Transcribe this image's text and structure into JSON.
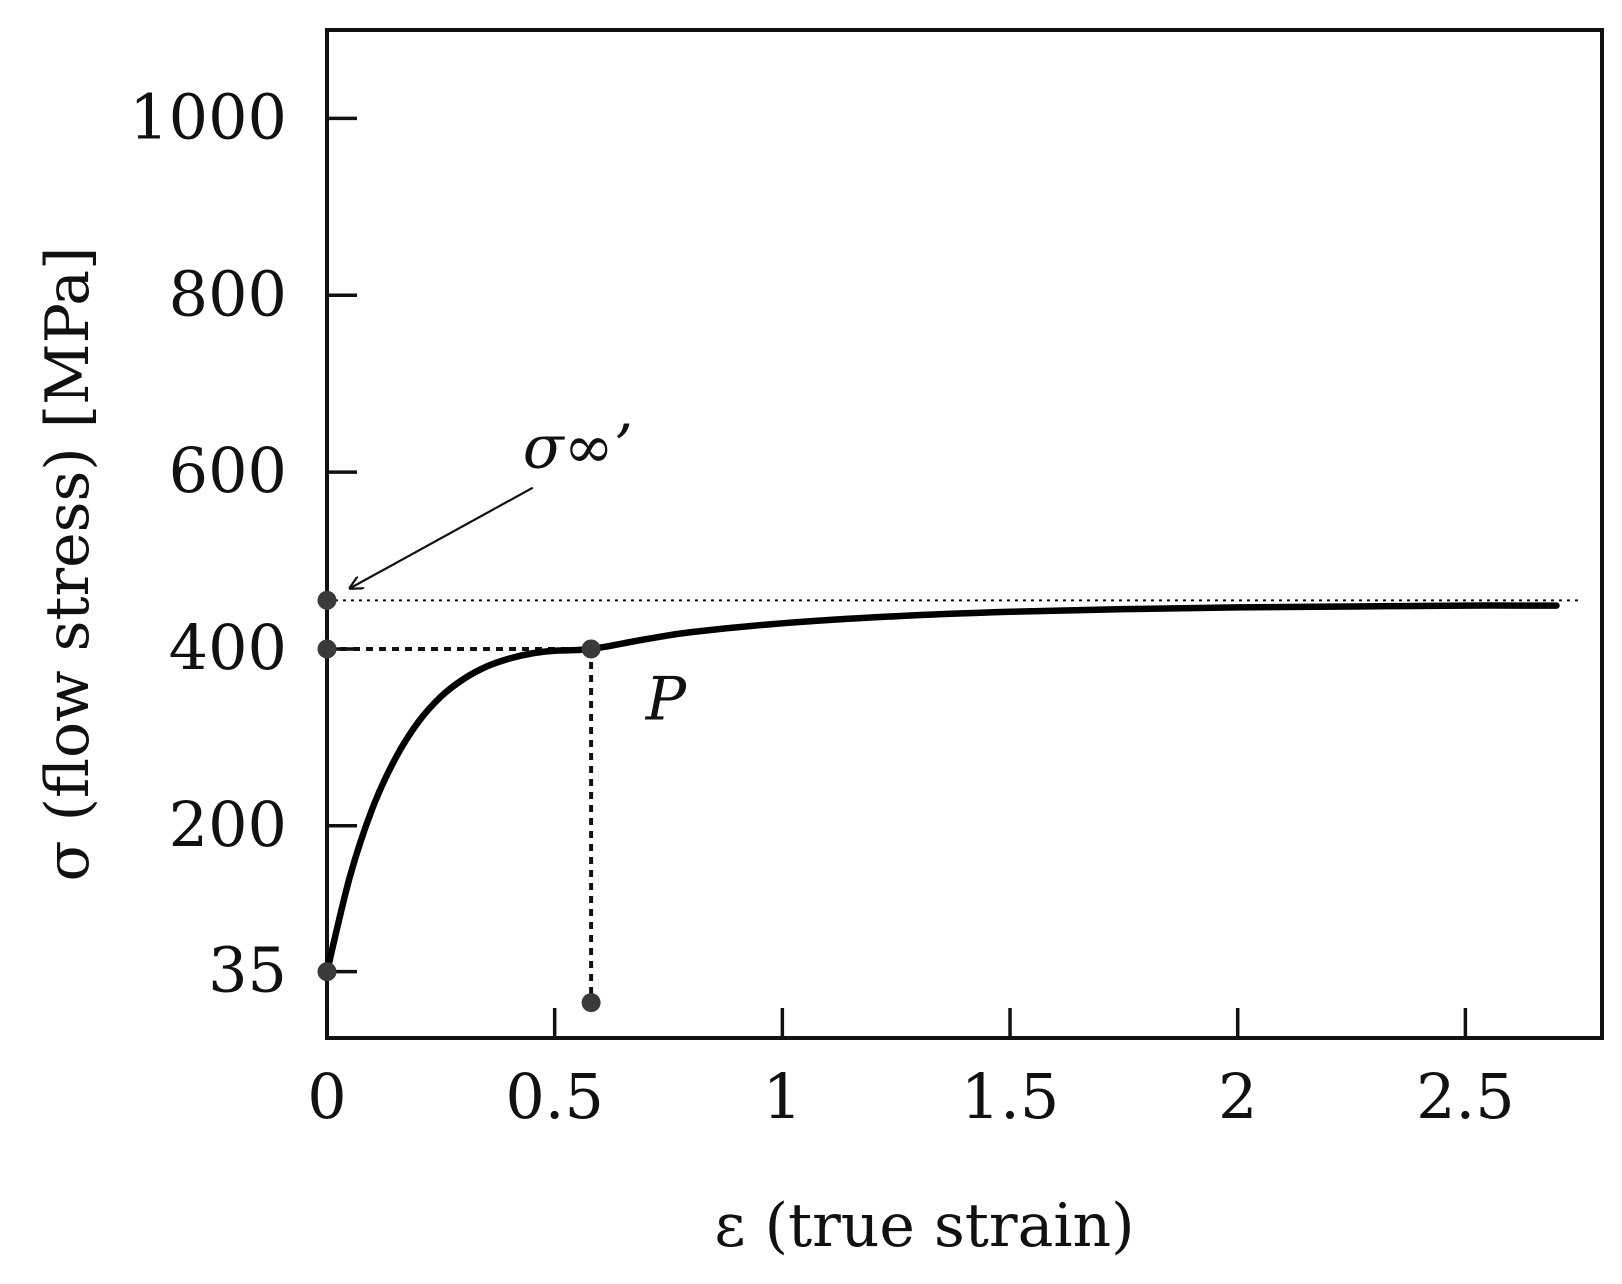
{
  "chart_data": {
    "type": "line",
    "title": "",
    "xlabel": "ε (true strain)",
    "ylabel": "σ (flow stress) [MPa]",
    "xlim": [
      0,
      2.8
    ],
    "ylim": [
      -40,
      1100
    ],
    "x_ticks": [
      0,
      0.5,
      1,
      1.5,
      2,
      2.5
    ],
    "x_tick_labels": [
      "0",
      "0.5",
      "1",
      "1.5",
      "2",
      "2.5"
    ],
    "y_ticks": [
      35,
      200,
      400,
      600,
      800,
      1000
    ],
    "y_tick_labels": [
      "35",
      "200",
      "400",
      "600",
      "800",
      "1000"
    ],
    "grid": false,
    "legend": "none",
    "series": [
      {
        "x": [
          0,
          0.05,
          0.1,
          0.15,
          0.2,
          0.25,
          0.3,
          0.35,
          0.4,
          0.45,
          0.5,
          0.58,
          0.7,
          0.8,
          1.0,
          1.25,
          1.5,
          1.75,
          2.0,
          2.25,
          2.5,
          2.7
        ],
        "y": [
          35,
          142,
          220,
          276,
          317,
          346,
          366,
          380,
          389,
          395,
          398,
          400,
          411,
          419,
          429,
          437,
          442,
          445,
          447,
          448,
          449,
          449
        ]
      }
    ],
    "reference_lines": {
      "sigma_infinity": 455,
      "p_strain": 0.58,
      "p_stress": 400
    },
    "marked_points": [
      {
        "x": 0,
        "y": 455
      },
      {
        "x": 0,
        "y": 400
      },
      {
        "x": 0,
        "y": 35
      },
      {
        "x": 0.58,
        "y": 400
      },
      {
        "x": 0.58,
        "y": 0
      }
    ],
    "annotations": [
      {
        "text": "σ∞’",
        "x": 0.43,
        "y": 605,
        "arrow_to": {
          "x": 0.03,
          "y": 460
        }
      },
      {
        "text": "P",
        "x": 0.7,
        "y": 320
      }
    ]
  }
}
